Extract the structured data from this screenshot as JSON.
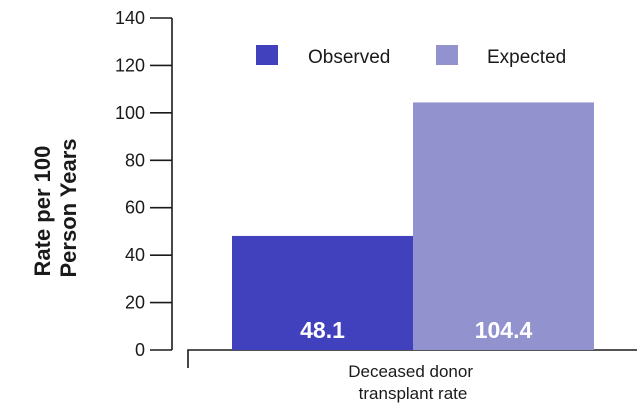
{
  "chart_data": {
    "type": "bar",
    "categories": [
      "Deceased donor transplant rate"
    ],
    "category_label_lines": [
      "Deceased donor",
      "transplant rate"
    ],
    "series": [
      {
        "name": "Observed",
        "values": [
          48.1
        ],
        "value_labels": [
          "48.1"
        ],
        "color": "#4141bd"
      },
      {
        "name": "Expected",
        "values": [
          104.4
        ],
        "value_labels": [
          "104.4"
        ],
        "color": "#9292cf"
      }
    ],
    "ylabel_lines": [
      "Rate per 100",
      "Person Years"
    ],
    "ylim": [
      0,
      140
    ],
    "yticks": [
      0,
      20,
      40,
      60,
      80,
      100,
      120,
      140
    ],
    "ytick_labels": [
      "0",
      "20",
      "40",
      "60",
      "80",
      "100",
      "120",
      "140"
    ],
    "legend_position": "top-right",
    "grid": false
  }
}
